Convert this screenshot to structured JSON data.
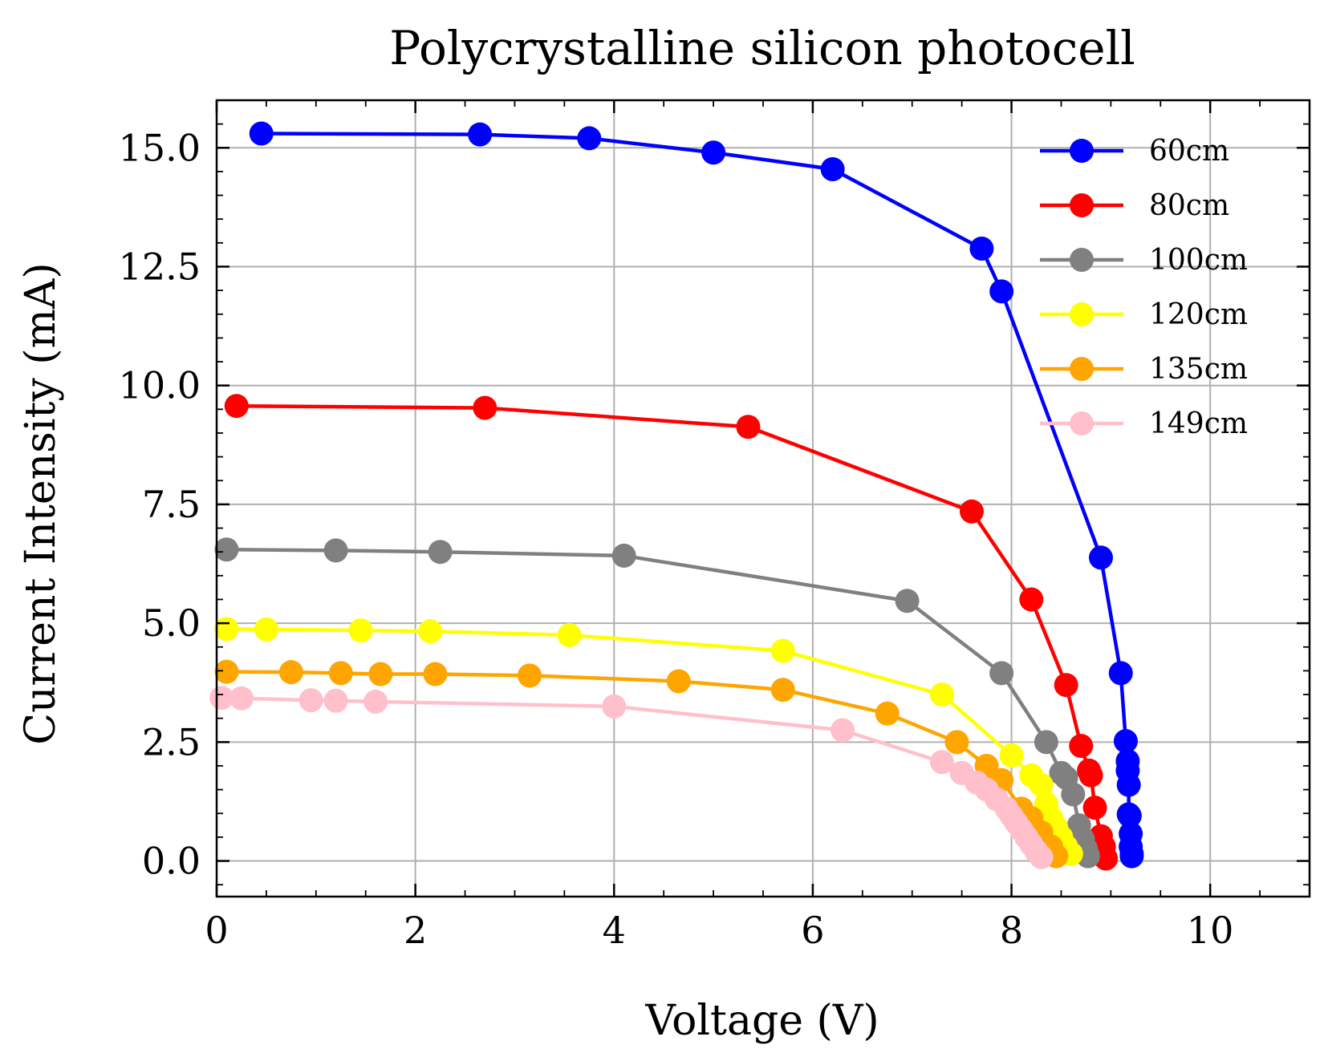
{
  "chart_data": {
    "type": "line",
    "title": "Polycrystalline silicon photocell",
    "xlabel": "Voltage (V)",
    "ylabel": "Current Intensity (mA)",
    "xlim": [
      0,
      11
    ],
    "ylim": [
      -0.75,
      16.0
    ],
    "x_ticks": [
      0,
      2,
      4,
      6,
      8,
      10
    ],
    "x_tick_labels": [
      "0",
      "2",
      "4",
      "6",
      "8",
      "10"
    ],
    "y_ticks": [
      0.0,
      2.5,
      5.0,
      7.5,
      10.0,
      12.5,
      15.0
    ],
    "y_tick_labels": [
      "0.0",
      "2.5",
      "5.0",
      "7.5",
      "10.0",
      "12.5",
      "15.0"
    ],
    "grid": true,
    "legend_position": "top-right",
    "series": [
      {
        "name": "60cm",
        "color": "#0000ff",
        "x": [
          0.45,
          2.65,
          3.75,
          5.0,
          6.2,
          7.7,
          7.9,
          8.9,
          9.1,
          9.15,
          9.17,
          9.17,
          9.18,
          9.18,
          9.19,
          9.2,
          9.2,
          9.21,
          9.21
        ],
        "y": [
          15.3,
          15.28,
          15.2,
          14.9,
          14.55,
          12.88,
          11.98,
          6.38,
          3.95,
          2.52,
          2.1,
          1.9,
          1.6,
          0.98,
          0.95,
          0.57,
          0.3,
          0.15,
          0.1
        ]
      },
      {
        "name": "80cm",
        "color": "#ff0000",
        "x": [
          0.2,
          2.7,
          5.35,
          7.6,
          8.2,
          8.55,
          8.7,
          8.78,
          8.8,
          8.84,
          8.9,
          8.93,
          8.95
        ],
        "y": [
          9.57,
          9.53,
          9.13,
          7.35,
          5.5,
          3.7,
          2.42,
          1.9,
          1.8,
          1.12,
          0.52,
          0.3,
          0.05
        ]
      },
      {
        "name": "100cm",
        "color": "#808080",
        "x": [
          0.1,
          1.2,
          2.25,
          4.1,
          6.95,
          7.9,
          8.35,
          8.5,
          8.55,
          8.62,
          8.68,
          8.72,
          8.75,
          8.77
        ],
        "y": [
          6.55,
          6.53,
          6.5,
          6.42,
          5.47,
          3.95,
          2.5,
          1.85,
          1.75,
          1.4,
          0.75,
          0.45,
          0.25,
          0.1
        ]
      },
      {
        "name": "120cm",
        "color": "#ffff00",
        "x": [
          0.1,
          0.5,
          1.45,
          2.15,
          3.55,
          5.7,
          7.3,
          8.0,
          8.2,
          8.3,
          8.35,
          8.4,
          8.45,
          8.5,
          8.55,
          8.6
        ],
        "y": [
          4.88,
          4.87,
          4.85,
          4.83,
          4.75,
          4.42,
          3.5,
          2.22,
          1.8,
          1.6,
          1.2,
          0.9,
          0.7,
          0.5,
          0.3,
          0.15
        ]
      },
      {
        "name": "135cm",
        "color": "#ffa500",
        "x": [
          0.1,
          0.75,
          1.25,
          1.65,
          2.2,
          3.15,
          4.65,
          5.7,
          6.75,
          7.45,
          7.75,
          7.9,
          8.1,
          8.2,
          8.3,
          8.4,
          8.45
        ],
        "y": [
          3.98,
          3.97,
          3.95,
          3.93,
          3.93,
          3.9,
          3.78,
          3.6,
          3.1,
          2.5,
          2.0,
          1.7,
          1.1,
          0.9,
          0.6,
          0.3,
          0.1
        ]
      },
      {
        "name": "149cm",
        "color": "#ffc0cb",
        "x": [
          0.05,
          0.25,
          0.95,
          1.2,
          1.6,
          4.0,
          6.3,
          7.3,
          7.5,
          7.65,
          7.75,
          7.85,
          7.95,
          8.0,
          8.05,
          8.1,
          8.15,
          8.2,
          8.25,
          8.3
        ],
        "y": [
          3.43,
          3.42,
          3.38,
          3.37,
          3.35,
          3.25,
          2.75,
          2.08,
          1.85,
          1.65,
          1.5,
          1.3,
          1.1,
          0.95,
          0.8,
          0.65,
          0.5,
          0.35,
          0.2,
          0.08
        ]
      }
    ]
  }
}
